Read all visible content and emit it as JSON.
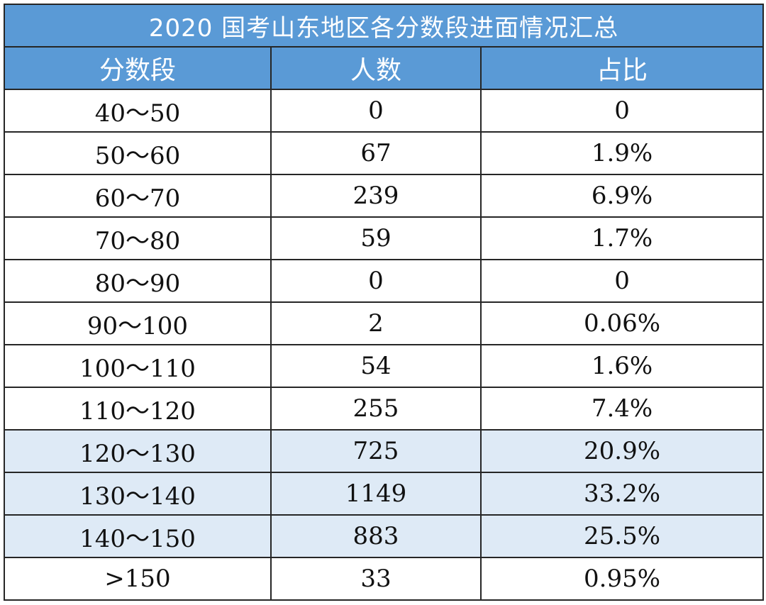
{
  "title": "2020 国考山东地区各分数段进面情况汇总",
  "colors": {
    "header_bg": "#5a9ad6",
    "header_text": "#ffffff",
    "highlight_bg": "#deeaf6",
    "border": "#262626"
  },
  "headers": [
    "分数段",
    "人数",
    "占比"
  ],
  "rows": [
    {
      "range": "40～50",
      "count": "0",
      "ratio": "0",
      "highlight": false
    },
    {
      "range": "50～60",
      "count": "67",
      "ratio": "1.9%",
      "highlight": false
    },
    {
      "range": "60～70",
      "count": "239",
      "ratio": "6.9%",
      "highlight": false
    },
    {
      "range": "70～80",
      "count": "59",
      "ratio": "1.7%",
      "highlight": false
    },
    {
      "range": "80～90",
      "count": "0",
      "ratio": "0",
      "highlight": false
    },
    {
      "range": "90～100",
      "count": "2",
      "ratio": "0.06%",
      "highlight": false
    },
    {
      "range": "100～110",
      "count": "54",
      "ratio": "1.6%",
      "highlight": false
    },
    {
      "range": "110～120",
      "count": "255",
      "ratio": "7.4%",
      "highlight": false
    },
    {
      "range": "120～130",
      "count": "725",
      "ratio": "20.9%",
      "highlight": true
    },
    {
      "range": "130～140",
      "count": "1149",
      "ratio": "33.2%",
      "highlight": true
    },
    {
      "range": "140～150",
      "count": "883",
      "ratio": "25.5%",
      "highlight": true
    },
    {
      "range": ">150",
      "count": "33",
      "ratio": "0.95%",
      "highlight": false
    }
  ]
}
